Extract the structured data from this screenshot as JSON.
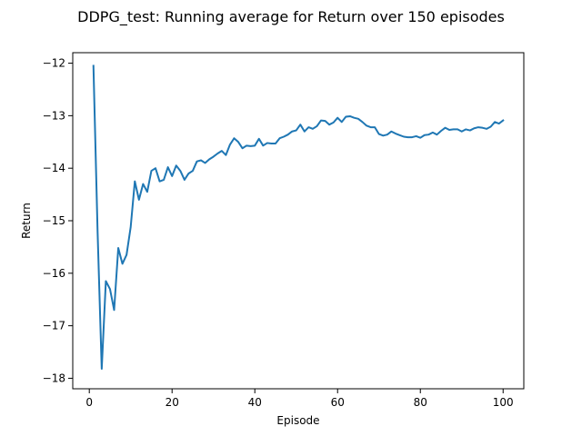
{
  "chart_data": {
    "type": "line",
    "title": "DDPG_test: Running average for Return over 150 episodes",
    "xlabel": "Episode",
    "ylabel": "Return",
    "xlim": [
      -4.0,
      105.0
    ],
    "ylim": [
      -18.2,
      -11.8
    ],
    "xticks": [
      0,
      20,
      40,
      60,
      80,
      100
    ],
    "yticks": [
      -18,
      -17,
      -16,
      -15,
      -14,
      -13,
      -12
    ],
    "xtick_labels": [
      "0",
      "20",
      "40",
      "60",
      "80",
      "100"
    ],
    "ytick_labels": [
      "−18",
      "−17",
      "−16",
      "−15",
      "−14",
      "−13",
      "−12"
    ],
    "line_color": "#1f77b4",
    "grid": false,
    "series": [
      {
        "x": [
          1,
          2,
          3,
          4,
          5,
          6,
          7,
          8,
          9,
          10,
          11,
          12,
          13,
          14,
          15,
          16,
          17,
          18,
          19,
          20,
          21,
          22,
          23,
          24,
          25,
          26,
          27,
          28,
          29,
          30,
          31,
          32,
          33,
          34,
          35,
          36,
          37,
          38,
          39,
          40,
          41,
          42,
          43,
          44,
          45,
          46,
          47,
          48,
          49,
          50,
          51,
          52,
          53,
          54,
          55,
          56,
          57,
          58,
          59,
          60,
          61,
          62,
          63,
          64,
          65,
          66,
          67,
          68,
          69,
          70,
          71,
          72,
          73,
          74,
          75,
          76,
          77,
          78,
          79,
          80,
          81,
          82,
          83,
          84,
          85,
          86,
          87,
          88,
          89,
          90,
          91,
          92,
          93,
          94,
          95,
          96,
          97,
          98,
          99,
          100
        ],
        "y": [
          -12.05,
          -15.2,
          -17.82,
          -16.15,
          -16.3,
          -16.7,
          -15.52,
          -15.82,
          -15.65,
          -15.12,
          -14.25,
          -14.6,
          -14.3,
          -14.45,
          -14.05,
          -14.0,
          -14.25,
          -14.22,
          -13.98,
          -14.15,
          -13.95,
          -14.05,
          -14.22,
          -14.1,
          -14.05,
          -13.87,
          -13.85,
          -13.9,
          -13.83,
          -13.78,
          -13.72,
          -13.67,
          -13.75,
          -13.55,
          -13.43,
          -13.5,
          -13.62,
          -13.57,
          -13.58,
          -13.57,
          -13.44,
          -13.57,
          -13.52,
          -13.53,
          -13.53,
          -13.43,
          -13.4,
          -13.36,
          -13.3,
          -13.28,
          -13.17,
          -13.3,
          -13.22,
          -13.25,
          -13.2,
          -13.09,
          -13.1,
          -13.17,
          -13.13,
          -13.04,
          -13.12,
          -13.02,
          -13.01,
          -13.04,
          -13.06,
          -13.12,
          -13.19,
          -13.22,
          -13.22,
          -13.35,
          -13.38,
          -13.36,
          -13.3,
          -13.34,
          -13.37,
          -13.4,
          -13.41,
          -13.41,
          -13.39,
          -13.42,
          -13.37,
          -13.36,
          -13.32,
          -13.36,
          -13.29,
          -13.23,
          -13.27,
          -13.26,
          -13.26,
          -13.3,
          -13.26,
          -13.28,
          -13.24,
          -13.22,
          -13.23,
          -13.25,
          -13.21,
          -13.12,
          -13.15,
          -13.09
        ]
      }
    ]
  }
}
